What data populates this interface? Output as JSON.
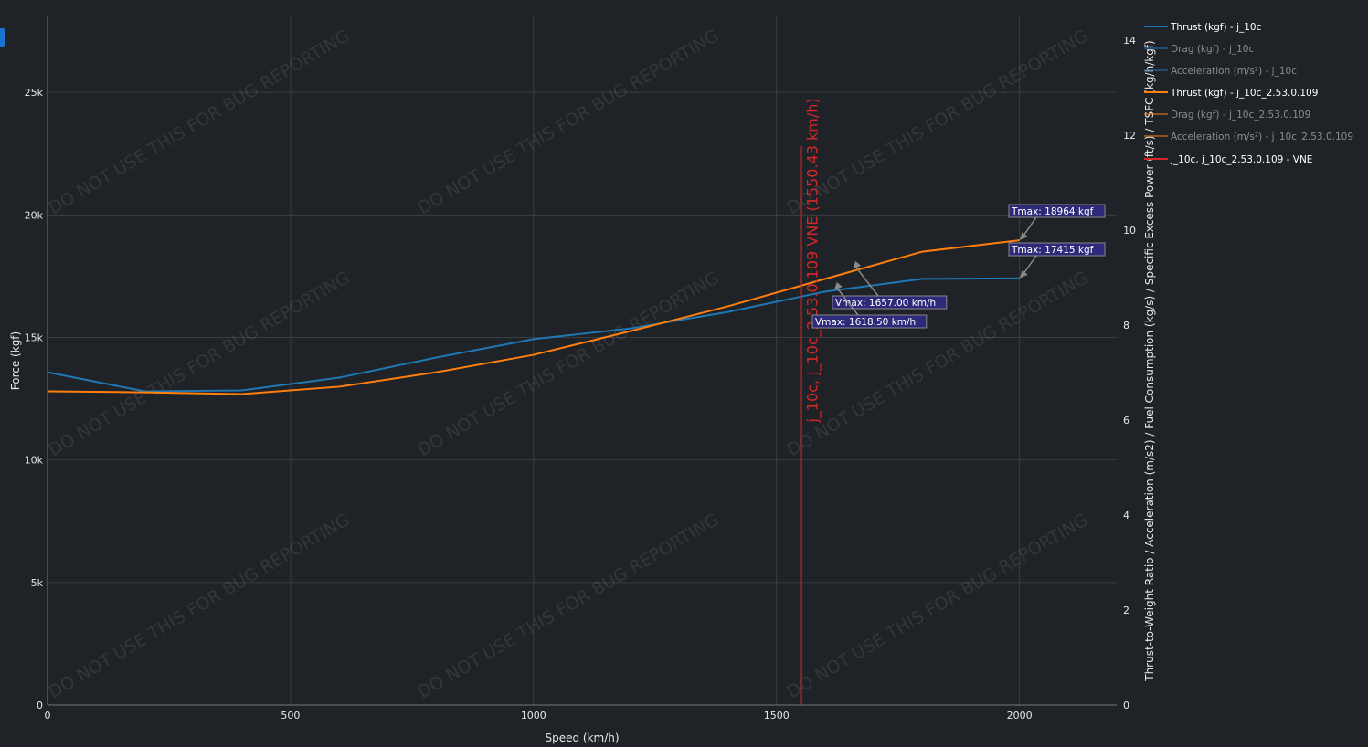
{
  "chart_data": {
    "type": "line",
    "xlabel": "Speed (km/h)",
    "ylabel": "Force (kgf)",
    "y2label": "Thrust-to-Weight Ratio / Acceleration (m/s2) / Fuel Consumption (kg/s) / Specific Excess Power (ft/s) / TSFC (kg/h/kgf)",
    "xlim": [
      0,
      2200
    ],
    "ylim": [
      0,
      28100
    ],
    "y2lim": [
      0,
      14.5
    ],
    "xticks": [
      0,
      500,
      1000,
      1500,
      2000
    ],
    "xtick_labels": [
      "0",
      "500",
      "1000",
      "1500",
      "2000"
    ],
    "yticks": [
      0,
      5000,
      10000,
      15000,
      20000,
      25000
    ],
    "ytick_labels": [
      "0",
      "5k",
      "10k",
      "15k",
      "20k",
      "25k"
    ],
    "y2ticks": [
      0,
      2,
      4,
      6,
      8,
      10,
      12,
      14
    ],
    "y2tick_labels": [
      "0",
      "2",
      "4",
      "6",
      "8",
      "10",
      "12",
      "14"
    ],
    "grid": true,
    "legend_placement": "right",
    "series": [
      {
        "name": "Thrust (kgf) - j_10c",
        "color": "#1f77b4",
        "visible": true,
        "x": [
          0,
          200,
          400,
          600,
          800,
          1000,
          1200,
          1400,
          1600,
          1800,
          2000
        ],
        "y": [
          13580,
          12800,
          12840,
          13360,
          14180,
          14930,
          15370,
          16040,
          16870,
          17390,
          17415
        ]
      },
      {
        "name": "Drag (kgf) - j_10c",
        "color": "#1f77b4",
        "visible": false
      },
      {
        "name": "Acceleration (m/s²) - j_10c",
        "color": "#1f77b4",
        "visible": false
      },
      {
        "name": "Thrust (kgf) - j_10c_2.53.0.109",
        "color": "#ff7f0e",
        "visible": true,
        "x": [
          0,
          200,
          400,
          600,
          800,
          1000,
          1200,
          1400,
          1600,
          1800,
          2000
        ],
        "y": [
          12800,
          12760,
          12690,
          12990,
          13580,
          14290,
          15260,
          16270,
          17390,
          18500,
          18964
        ]
      },
      {
        "name": "Drag (kgf) - j_10c_2.53.0.109",
        "color": "#ff7f0e",
        "visible": false
      },
      {
        "name": "Acceleration (m/s²) - j_10c_2.53.0.109",
        "color": "#ff7f0e",
        "visible": false
      },
      {
        "name": "j_10c, j_10c_2.53.0.109 - VNE",
        "color": "#d62728",
        "visible": true,
        "x": [
          1550.43,
          1550.43
        ],
        "y": [
          0,
          22800
        ]
      }
    ],
    "vne_label": "j_10c, j_10c_2.53.0.109 VNE (1550.43 km/h)",
    "annotations": [
      {
        "text": "Tmax: 18964 kgf",
        "x": 2000,
        "y": 18964
      },
      {
        "text": "Tmax: 17415 kgf",
        "x": 2000,
        "y": 17415
      },
      {
        "text": "Vmax: 1657.00 km/h",
        "x": 1657,
        "y": 17780
      },
      {
        "text": "Vmax: 1618.50 km/h",
        "x": 1618.5,
        "y": 16920
      }
    ],
    "watermark": "DO NOT USE THIS FOR BUG REPORTING"
  }
}
